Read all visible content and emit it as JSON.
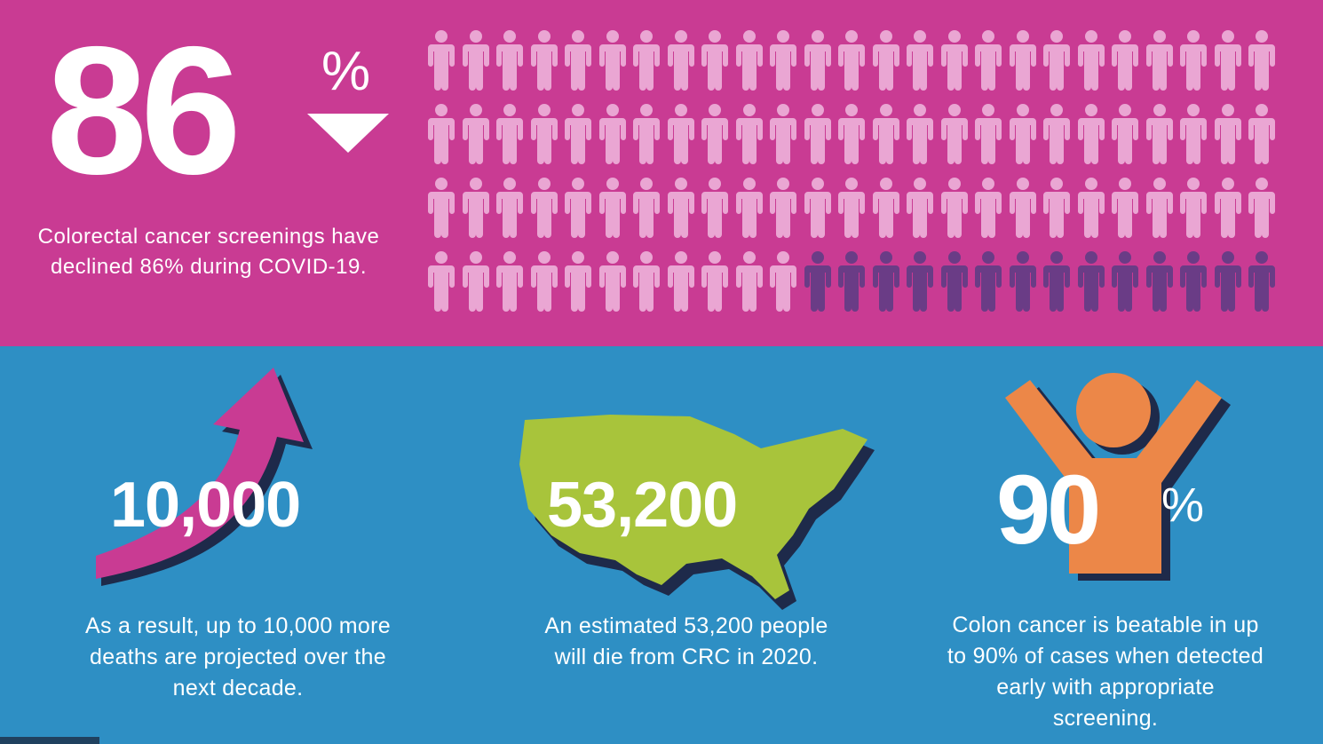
{
  "colors": {
    "top_bg": "#c93b93",
    "bottom_bg": "#2e8fc4",
    "person_light": "#eaa6d3",
    "person_dark": "#6a3c86",
    "arrow": "#c93b93",
    "map": "#a8c43b",
    "figure": "#ec8748",
    "shadow": "#1e2a4a"
  },
  "screening": {
    "value": "86",
    "unit": "%",
    "caption": "Colorectal cancer screenings have declined 86% during COVID-19.",
    "icons": {
      "total": 100,
      "highlighted": 14,
      "rows": 4,
      "per_row": 25
    }
  },
  "deaths": {
    "value": "10,000",
    "caption": "As a result, up to 10,000 more deaths are projected over the next decade."
  },
  "estimate": {
    "value": "53,200",
    "caption": "An estimated 53,200 people will die from CRC in 2020."
  },
  "beatable": {
    "value": "90",
    "unit": "%",
    "caption": "Colon cancer is beatable in up to 90% of cases when detected early with appropriate screening."
  },
  "icons": [
    "person-icon",
    "arrow-down-icon",
    "arrow-up-icon",
    "us-map-icon",
    "celebrating-person-icon"
  ]
}
